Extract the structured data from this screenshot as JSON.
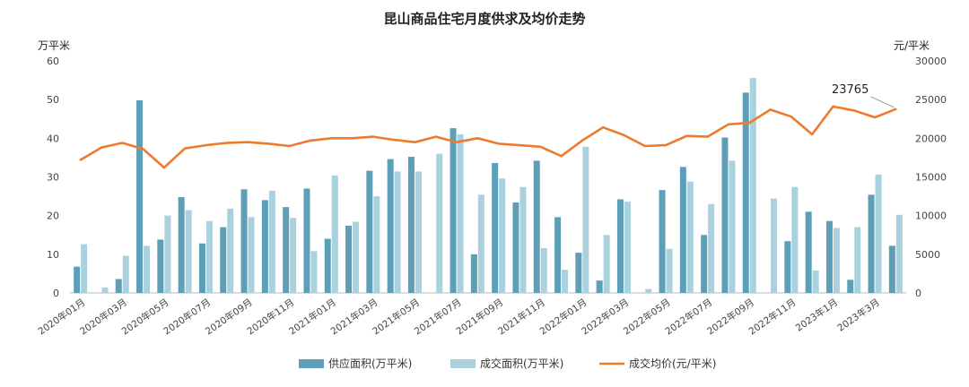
{
  "chart_data": {
    "type": "bar",
    "title": "昆山商品住宅月度供求及均价走势",
    "left_unit": "万平米",
    "right_unit": "元/平米",
    "left_axis": {
      "ylim": [
        0,
        60
      ],
      "ticks": [
        0,
        10,
        20,
        30,
        40,
        50,
        60
      ]
    },
    "right_axis": {
      "ylim": [
        0,
        30000
      ],
      "ticks": [
        0,
        5000,
        10000,
        15000,
        20000,
        25000,
        30000
      ]
    },
    "x_tick_labels": [
      "2020年01月",
      "2020年03月",
      "2020年05月",
      "2020年07月",
      "2020年09月",
      "2020年11月",
      "2021年01月",
      "2021年03月",
      "2021年05月",
      "2021年07月",
      "2021年09月",
      "2021年11月",
      "2022年01月",
      "2022年03月",
      "2022年05月",
      "2022年07月",
      "2022年09月",
      "2022年11月",
      "2023年1月",
      "2023年3月"
    ],
    "series": [
      {
        "name": "供应面积(万平米)",
        "type": "bar",
        "axis": "left",
        "color": "#5e9fb8",
        "values": [
          6.8,
          0,
          3.6,
          49.8,
          13.8,
          24.8,
          12.8,
          17.0,
          26.8,
          24.0,
          22.2,
          27.0,
          14.0,
          17.4,
          31.6,
          34.6,
          35.2,
          0,
          42.6,
          10.0,
          33.6,
          23.4,
          34.2,
          19.6,
          10.4,
          3.2,
          24.2,
          0,
          26.6,
          32.6,
          15.0,
          40.2,
          51.8,
          0,
          13.4,
          21.0,
          18.6,
          3.4,
          25.4,
          12.2
        ]
      },
      {
        "name": "成交面积(万平米)",
        "type": "bar",
        "axis": "left",
        "color": "#a9d1de",
        "values": [
          12.6,
          1.4,
          9.6,
          12.2,
          20.0,
          21.4,
          18.6,
          21.8,
          19.6,
          26.4,
          19.4,
          10.8,
          30.4,
          18.4,
          25.0,
          31.4,
          31.4,
          36.0,
          41.0,
          25.4,
          29.6,
          27.4,
          11.6,
          6.0,
          37.8,
          15.0,
          23.6,
          1.0,
          11.4,
          28.8,
          23.0,
          34.2,
          55.6,
          24.4,
          27.4,
          5.8,
          16.8,
          17.0,
          30.6,
          20.2
        ]
      },
      {
        "name": "成交均价(元/平米)",
        "type": "line",
        "axis": "right",
        "color": "#ee7a2e",
        "values": [
          17200,
          18800,
          19400,
          18600,
          16200,
          18700,
          19100,
          19400,
          19500,
          19300,
          19000,
          19700,
          20000,
          20000,
          20200,
          19800,
          19500,
          20200,
          19500,
          20000,
          19300,
          19100,
          18900,
          17700,
          19700,
          21400,
          20400,
          19000,
          19100,
          20300,
          20200,
          21800,
          22000,
          23700,
          22800,
          20500,
          24100,
          23600,
          22700,
          23765
        ]
      }
    ],
    "annotation": {
      "text": "23765"
    },
    "legend_position": "bottom",
    "grid": false
  }
}
